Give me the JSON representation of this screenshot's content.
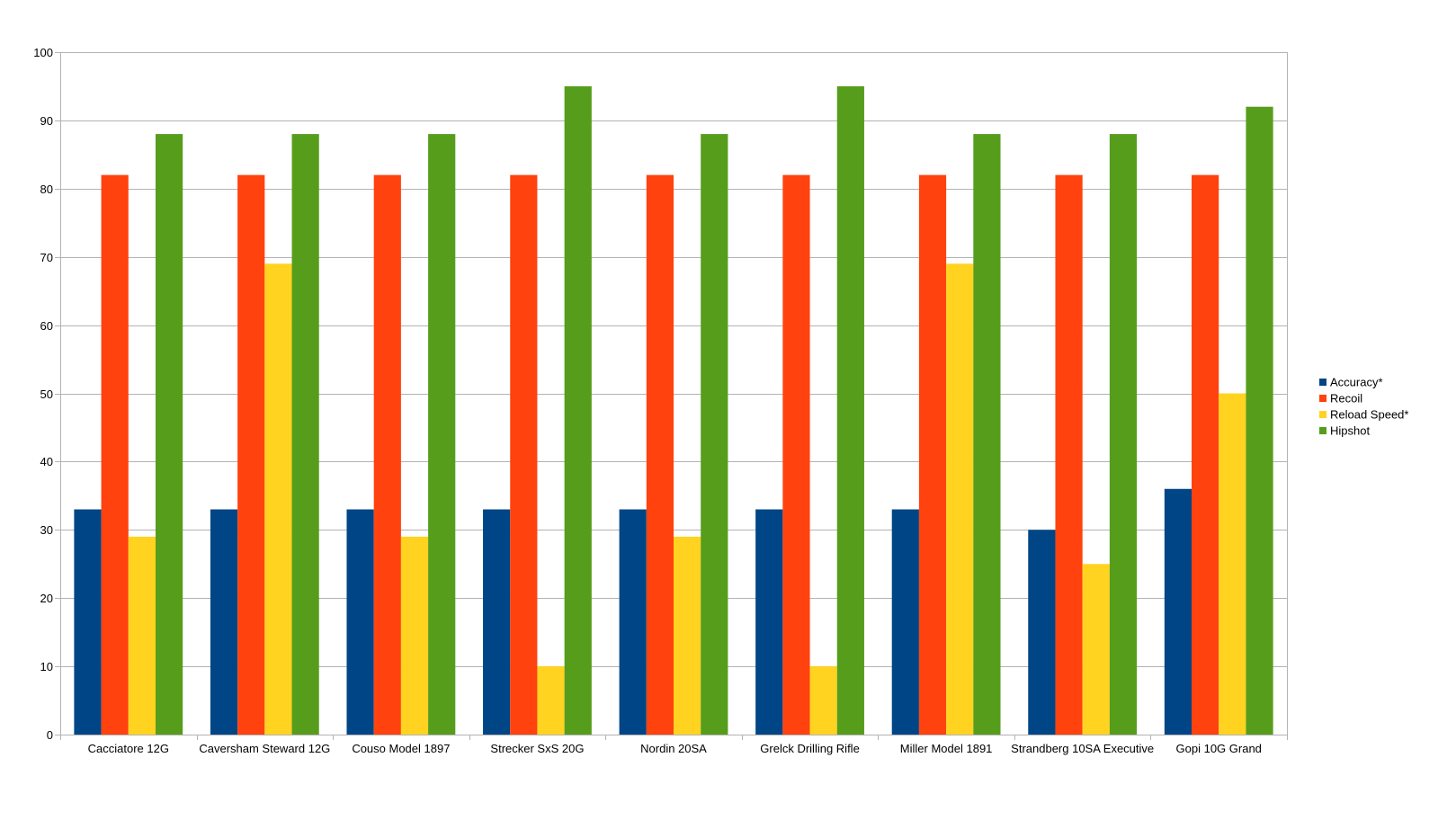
{
  "chart_data": {
    "type": "bar",
    "title": "",
    "xlabel": "",
    "ylabel": "",
    "ylim": [
      0,
      100
    ],
    "yticks": [
      0,
      10,
      20,
      30,
      40,
      50,
      60,
      70,
      80,
      90,
      100
    ],
    "grid": true,
    "legend_position": "right",
    "categories": [
      "Cacciatore 12G",
      "Caversham Steward 12G",
      "Couso Model 1897",
      "Strecker SxS 20G",
      "Nordin 20SA",
      "Grelck Drilling Rifle",
      "Miller Model 1891",
      "Strandberg 10SA Executive",
      "Gopi 10G Grand"
    ],
    "series": [
      {
        "name": "Accuracy*",
        "color": "#004586",
        "values": [
          33,
          33,
          33,
          33,
          33,
          33,
          33,
          30,
          36
        ]
      },
      {
        "name": "Recoil",
        "color": "#ff420e",
        "values": [
          82,
          82,
          82,
          82,
          82,
          82,
          82,
          82,
          82
        ]
      },
      {
        "name": "Reload Speed*",
        "color": "#ffd320",
        "values": [
          29,
          69,
          29,
          10,
          29,
          10,
          69,
          25,
          50
        ]
      },
      {
        "name": "Hipshot",
        "color": "#579d1c",
        "values": [
          88,
          88,
          88,
          95,
          88,
          95,
          88,
          88,
          92
        ]
      }
    ]
  }
}
